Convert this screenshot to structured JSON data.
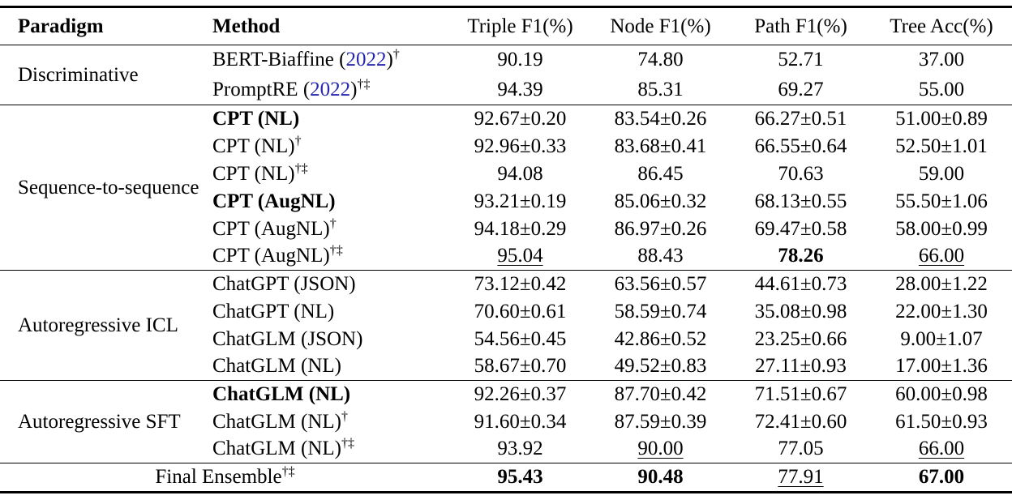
{
  "header": {
    "columns": [
      "Paradigm",
      "Method",
      "Triple F1(%)",
      "Node F1(%)",
      "Path F1(%)",
      "Tree Acc(%)"
    ]
  },
  "colors": {
    "citation_year": "#2626ae",
    "text": "#000000",
    "rule": "#000000"
  },
  "groups": [
    {
      "paradigm": "Discriminative",
      "rows": [
        {
          "method": "BERT-Biaffine",
          "cite_year": "2022",
          "sup": "†",
          "bold_method": false,
          "values": [
            "90.19",
            "74.80",
            "52.71",
            "37.00"
          ],
          "value_styles": [
            "",
            "",
            "",
            ""
          ]
        },
        {
          "method": "PromptRE",
          "cite_year": "2022",
          "sup": "†‡",
          "bold_method": false,
          "values": [
            "94.39",
            "85.31",
            "69.27",
            "55.00"
          ],
          "value_styles": [
            "",
            "",
            "",
            ""
          ]
        }
      ]
    },
    {
      "paradigm": "Sequence-to-sequence",
      "rows": [
        {
          "method": "CPT (NL)",
          "sup": "",
          "bold_method": true,
          "values": [
            "92.67±0.20",
            "83.54±0.26",
            "66.27±0.51",
            "51.00±0.89"
          ],
          "value_styles": [
            "",
            "",
            "",
            ""
          ]
        },
        {
          "method": "CPT (NL)",
          "sup": "†",
          "bold_method": false,
          "values": [
            "92.96±0.33",
            "83.68±0.41",
            "66.55±0.64",
            "52.50±1.01"
          ],
          "value_styles": [
            "",
            "",
            "",
            ""
          ]
        },
        {
          "method": "CPT (NL)",
          "sup": "†‡",
          "bold_method": false,
          "values": [
            "94.08",
            "86.45",
            "70.63",
            "59.00"
          ],
          "value_styles": [
            "",
            "",
            "",
            ""
          ]
        },
        {
          "method": "CPT (AugNL)",
          "sup": "",
          "bold_method": true,
          "values": [
            "93.21±0.19",
            "85.06±0.32",
            "68.13±0.55",
            "55.50±1.06"
          ],
          "value_styles": [
            "",
            "",
            "",
            ""
          ]
        },
        {
          "method": "CPT (AugNL)",
          "sup": "†",
          "bold_method": false,
          "values": [
            "94.18±0.29",
            "86.97±0.26",
            "69.47±0.58",
            "58.00±0.99"
          ],
          "value_styles": [
            "",
            "",
            "",
            ""
          ]
        },
        {
          "method": "CPT (AugNL)",
          "sup": "†‡",
          "bold_method": false,
          "values": [
            "95.04",
            "88.43",
            "78.26",
            "66.00"
          ],
          "value_styles": [
            "u",
            "",
            "b",
            "u"
          ]
        }
      ]
    },
    {
      "paradigm": "Autoregressive ICL",
      "rows": [
        {
          "method": "ChatGPT (JSON)",
          "sup": "",
          "bold_method": false,
          "values": [
            "73.12±0.42",
            "63.56±0.57",
            "44.61±0.73",
            "28.00±1.22"
          ],
          "value_styles": [
            "",
            "",
            "",
            ""
          ]
        },
        {
          "method": "ChatGPT (NL)",
          "sup": "",
          "bold_method": false,
          "values": [
            "70.60±0.61",
            "58.59±0.74",
            "35.08±0.98",
            "22.00±1.30"
          ],
          "value_styles": [
            "",
            "",
            "",
            ""
          ]
        },
        {
          "method": "ChatGLM (JSON)",
          "sup": "",
          "bold_method": false,
          "values": [
            "54.56±0.45",
            "42.86±0.52",
            "23.25±0.66",
            "9.00±1.07"
          ],
          "value_styles": [
            "",
            "",
            "",
            ""
          ]
        },
        {
          "method": "ChatGLM (NL)",
          "sup": "",
          "bold_method": false,
          "values": [
            "58.67±0.70",
            "49.52±0.83",
            "27.11±0.93",
            "17.00±1.36"
          ],
          "value_styles": [
            "",
            "",
            "",
            ""
          ]
        }
      ]
    },
    {
      "paradigm": "Autoregressive SFT",
      "rows": [
        {
          "method": "ChatGLM (NL)",
          "sup": "",
          "bold_method": true,
          "values": [
            "92.26±0.37",
            "87.70±0.42",
            "71.51±0.67",
            "60.00±0.98"
          ],
          "value_styles": [
            "",
            "",
            "",
            ""
          ]
        },
        {
          "method": "ChatGLM (NL)",
          "sup": "†",
          "bold_method": false,
          "values": [
            "91.60±0.34",
            "87.59±0.39",
            "72.41±0.60",
            "61.50±0.93"
          ],
          "value_styles": [
            "",
            "",
            "",
            ""
          ]
        },
        {
          "method": "ChatGLM (NL)",
          "sup": "†‡",
          "bold_method": false,
          "values": [
            "93.92",
            "90.00",
            "77.05",
            "66.00"
          ],
          "value_styles": [
            "",
            "u",
            "",
            "u"
          ]
        }
      ]
    }
  ],
  "final_row": {
    "label": "Final Ensemble",
    "sup": "†‡",
    "values": [
      "95.43",
      "90.48",
      "77.91",
      "67.00"
    ],
    "value_styles": [
      "b",
      "b",
      "u",
      "b"
    ]
  }
}
